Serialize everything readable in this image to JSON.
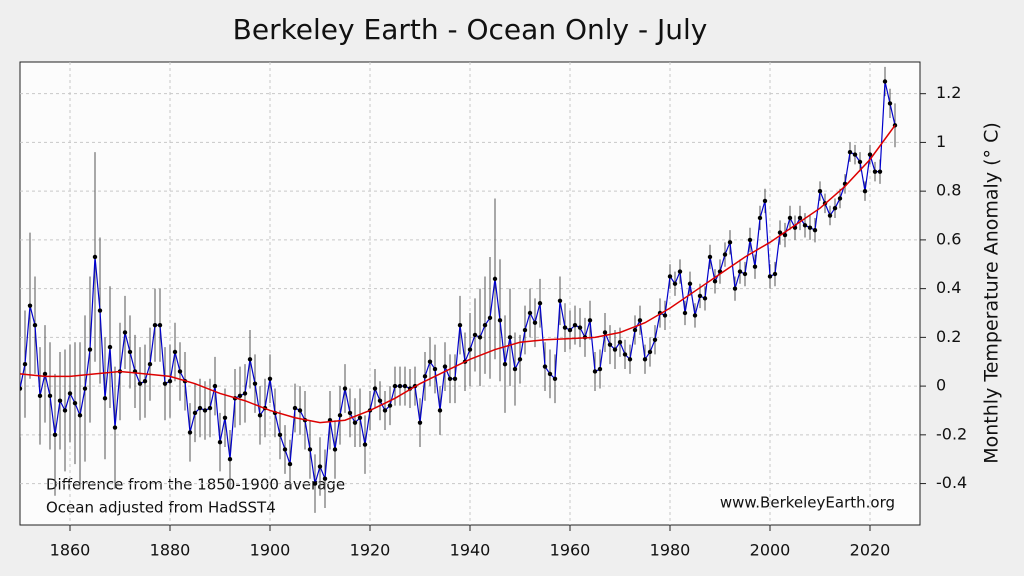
{
  "chart_data": {
    "type": "line",
    "title": "Berkeley Earth - Ocean Only - July",
    "ylabel": "Monthly Temperature Anomaly (° C)",
    "annotations": [
      "Difference from the 1850-1900 average",
      "Ocean adjusted from HadSST4"
    ],
    "credit": "www.BerkeleyEarth.org",
    "xlim": [
      1850,
      2030
    ],
    "ylim": [
      -0.57,
      1.33
    ],
    "xticks": [
      1860,
      1880,
      1900,
      1920,
      1940,
      1960,
      1980,
      2000,
      2020
    ],
    "yticks": [
      -0.4,
      -0.2,
      0,
      0.2,
      0.4,
      0.6,
      0.8,
      1,
      1.2
    ],
    "grid": true,
    "series": [
      {
        "color": "#0000cc",
        "marker_color": "#000000",
        "error_color": "#555555",
        "x": [
          1850,
          1851,
          1852,
          1853,
          1854,
          1855,
          1856,
          1857,
          1858,
          1859,
          1860,
          1861,
          1862,
          1863,
          1864,
          1865,
          1866,
          1867,
          1868,
          1869,
          1870,
          1871,
          1872,
          1873,
          1874,
          1875,
          1876,
          1877,
          1878,
          1879,
          1880,
          1881,
          1882,
          1883,
          1884,
          1885,
          1886,
          1887,
          1888,
          1889,
          1890,
          1891,
          1892,
          1893,
          1894,
          1895,
          1896,
          1897,
          1898,
          1899,
          1900,
          1901,
          1902,
          1903,
          1904,
          1905,
          1906,
          1907,
          1908,
          1909,
          1910,
          1911,
          1912,
          1913,
          1914,
          1915,
          1916,
          1917,
          1918,
          1919,
          1920,
          1921,
          1922,
          1923,
          1924,
          1925,
          1926,
          1927,
          1928,
          1929,
          1930,
          1931,
          1932,
          1933,
          1934,
          1935,
          1936,
          1937,
          1938,
          1939,
          1940,
          1941,
          1942,
          1943,
          1944,
          1945,
          1946,
          1947,
          1948,
          1949,
          1950,
          1951,
          1952,
          1953,
          1954,
          1955,
          1956,
          1957,
          1958,
          1959,
          1960,
          1961,
          1962,
          1963,
          1964,
          1965,
          1966,
          1967,
          1968,
          1969,
          1970,
          1971,
          1972,
          1973,
          1974,
          1975,
          1976,
          1977,
          1978,
          1979,
          1980,
          1981,
          1982,
          1983,
          1984,
          1985,
          1986,
          1987,
          1988,
          1989,
          1990,
          1991,
          1992,
          1993,
          1994,
          1995,
          1996,
          1997,
          1998,
          1999,
          2000,
          2001,
          2002,
          2003,
          2004,
          2005,
          2006,
          2007,
          2008,
          2009,
          2010,
          2011,
          2012,
          2013,
          2014,
          2015,
          2016,
          2017,
          2018,
          2019,
          2020,
          2021,
          2022,
          2023,
          2024,
          2025
        ],
        "values": [
          -0.01,
          0.09,
          0.33,
          0.25,
          -0.04,
          0.05,
          -0.04,
          -0.2,
          -0.06,
          -0.1,
          -0.03,
          -0.07,
          -0.12,
          -0.01,
          0.15,
          0.53,
          0.31,
          -0.05,
          0.16,
          -0.17,
          0.06,
          0.22,
          0.14,
          0.06,
          0.01,
          0.02,
          0.09,
          0.25,
          0.25,
          0.01,
          0.02,
          0.14,
          0.06,
          0.02,
          -0.19,
          -0.11,
          -0.09,
          -0.1,
          -0.09,
          0.0,
          -0.23,
          -0.13,
          -0.3,
          -0.05,
          -0.04,
          -0.03,
          0.11,
          0.01,
          -0.12,
          -0.09,
          0.03,
          -0.11,
          -0.2,
          -0.26,
          -0.32,
          -0.09,
          -0.1,
          -0.14,
          -0.26,
          -0.4,
          -0.33,
          -0.38,
          -0.14,
          -0.26,
          -0.12,
          -0.01,
          -0.11,
          -0.15,
          -0.13,
          -0.24,
          -0.1,
          -0.01,
          -0.06,
          -0.1,
          -0.08,
          0.0,
          0.0,
          0.0,
          -0.01,
          0.0,
          -0.15,
          0.04,
          0.1,
          0.07,
          -0.1,
          0.08,
          0.03,
          0.03,
          0.25,
          0.1,
          0.15,
          0.21,
          0.2,
          0.25,
          0.28,
          0.44,
          0.27,
          0.09,
          0.2,
          0.07,
          0.11,
          0.23,
          0.3,
          0.26,
          0.34,
          0.08,
          0.05,
          0.03,
          0.35,
          0.24,
          0.23,
          0.25,
          0.24,
          0.2,
          0.27,
          0.06,
          0.07,
          0.22,
          0.17,
          0.15,
          0.18,
          0.13,
          0.11,
          0.23,
          0.27,
          0.11,
          0.14,
          0.19,
          0.3,
          0.29,
          0.45,
          0.42,
          0.47,
          0.3,
          0.42,
          0.29,
          0.37,
          0.36,
          0.53,
          0.43,
          0.47,
          0.54,
          0.59,
          0.4,
          0.47,
          0.46,
          0.6,
          0.49,
          0.69,
          0.76,
          0.45,
          0.46,
          0.63,
          0.62,
          0.69,
          0.65,
          0.69,
          0.66,
          0.65,
          0.64,
          0.8,
          0.75,
          0.7,
          0.73,
          0.77,
          0.83,
          0.96,
          0.95,
          0.92,
          0.8,
          0.95,
          0.88,
          0.88,
          1.25,
          1.16,
          1.07
        ],
        "errors": [
          0.2,
          0.22,
          0.3,
          0.2,
          0.2,
          0.2,
          0.22,
          0.25,
          0.2,
          0.25,
          0.2,
          0.25,
          0.3,
          0.3,
          0.3,
          0.43,
          0.3,
          0.25,
          0.25,
          0.25,
          0.2,
          0.15,
          0.15,
          0.15,
          0.15,
          0.15,
          0.15,
          0.15,
          0.15,
          0.15,
          0.15,
          0.12,
          0.12,
          0.12,
          0.12,
          0.12,
          0.12,
          0.12,
          0.12,
          0.12,
          0.12,
          0.12,
          0.12,
          0.12,
          0.12,
          0.12,
          0.12,
          0.12,
          0.12,
          0.12,
          0.1,
          0.1,
          0.1,
          0.1,
          0.1,
          0.1,
          0.1,
          0.12,
          0.12,
          0.12,
          0.12,
          0.12,
          0.12,
          0.12,
          0.12,
          0.1,
          0.1,
          0.1,
          0.12,
          0.12,
          0.08,
          0.08,
          0.08,
          0.08,
          0.08,
          0.08,
          0.08,
          0.08,
          0.08,
          0.08,
          0.1,
          0.1,
          0.1,
          0.1,
          0.1,
          0.1,
          0.1,
          0.1,
          0.12,
          0.12,
          0.15,
          0.15,
          0.2,
          0.2,
          0.25,
          0.33,
          0.25,
          0.2,
          0.2,
          0.15,
          0.1,
          0.1,
          0.1,
          0.1,
          0.1,
          0.1,
          0.1,
          0.1,
          0.1,
          0.1,
          0.08,
          0.08,
          0.08,
          0.08,
          0.08,
          0.08,
          0.08,
          0.08,
          0.08,
          0.08,
          0.06,
          0.06,
          0.06,
          0.06,
          0.06,
          0.06,
          0.06,
          0.06,
          0.06,
          0.06,
          0.05,
          0.05,
          0.05,
          0.05,
          0.05,
          0.05,
          0.05,
          0.05,
          0.05,
          0.05,
          0.05,
          0.05,
          0.05,
          0.05,
          0.05,
          0.05,
          0.05,
          0.05,
          0.05,
          0.05,
          0.05,
          0.05,
          0.05,
          0.05,
          0.05,
          0.05,
          0.05,
          0.05,
          0.05,
          0.05,
          0.04,
          0.04,
          0.04,
          0.04,
          0.04,
          0.04,
          0.04,
          0.04,
          0.04,
          0.04,
          0.04,
          0.04,
          0.05,
          0.06,
          0.06,
          0.09
        ]
      },
      {
        "color": "#dd0000",
        "x": [
          1850,
          1855,
          1860,
          1865,
          1870,
          1875,
          1880,
          1885,
          1890,
          1895,
          1900,
          1905,
          1910,
          1915,
          1920,
          1925,
          1930,
          1935,
          1940,
          1945,
          1950,
          1955,
          1960,
          1965,
          1970,
          1975,
          1980,
          1985,
          1990,
          1995,
          2000,
          2005,
          2010,
          2015,
          2020,
          2025
        ],
        "values": [
          0.05,
          0.04,
          0.04,
          0.05,
          0.06,
          0.05,
          0.04,
          0.01,
          -0.03,
          -0.06,
          -0.1,
          -0.13,
          -0.15,
          -0.14,
          -0.1,
          -0.05,
          0.01,
          0.06,
          0.11,
          0.15,
          0.18,
          0.19,
          0.195,
          0.2,
          0.22,
          0.26,
          0.32,
          0.39,
          0.46,
          0.53,
          0.59,
          0.66,
          0.73,
          0.82,
          0.93,
          1.07
        ]
      }
    ]
  }
}
